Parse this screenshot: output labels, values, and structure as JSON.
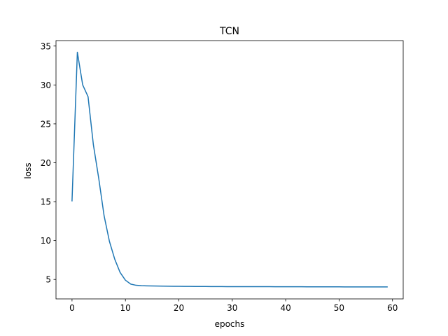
{
  "chart_data": {
    "type": "line",
    "title": "TCN",
    "xlabel": "epochs",
    "ylabel": "loss",
    "xlim": [
      -3,
      62
    ],
    "ylim": [
      2.5,
      35.7
    ],
    "xticks": [
      0,
      10,
      20,
      30,
      40,
      50,
      60
    ],
    "yticks": [
      5,
      10,
      15,
      20,
      25,
      30,
      35
    ],
    "grid": false,
    "series": [
      {
        "color": "#1f77b4",
        "x": [
          0,
          1,
          2,
          3,
          4,
          5,
          6,
          7,
          8,
          9,
          10,
          11,
          12,
          13,
          14,
          15,
          16,
          17,
          18,
          19,
          20,
          21,
          22,
          23,
          24,
          25,
          26,
          27,
          28,
          29,
          30,
          31,
          32,
          33,
          34,
          35,
          36,
          37,
          38,
          39,
          40,
          41,
          42,
          43,
          44,
          45,
          46,
          47,
          48,
          49,
          50,
          51,
          52,
          53,
          54,
          55,
          56,
          57,
          58,
          59
        ],
        "values": [
          15.1,
          34.2,
          30.0,
          28.5,
          22.3,
          18.0,
          13.2,
          9.9,
          7.6,
          5.9,
          4.9,
          4.4,
          4.25,
          4.2,
          4.18,
          4.16,
          4.15,
          4.14,
          4.13,
          4.12,
          4.12,
          4.11,
          4.11,
          4.1,
          4.1,
          4.1,
          4.09,
          4.09,
          4.09,
          4.08,
          4.08,
          4.08,
          4.08,
          4.07,
          4.07,
          4.07,
          4.07,
          4.07,
          4.06,
          4.06,
          4.06,
          4.06,
          4.06,
          4.06,
          4.05,
          4.05,
          4.05,
          4.05,
          4.05,
          4.05,
          4.05,
          4.04,
          4.04,
          4.04,
          4.04,
          4.04,
          4.04,
          4.04,
          4.04,
          4.04
        ]
      }
    ]
  }
}
